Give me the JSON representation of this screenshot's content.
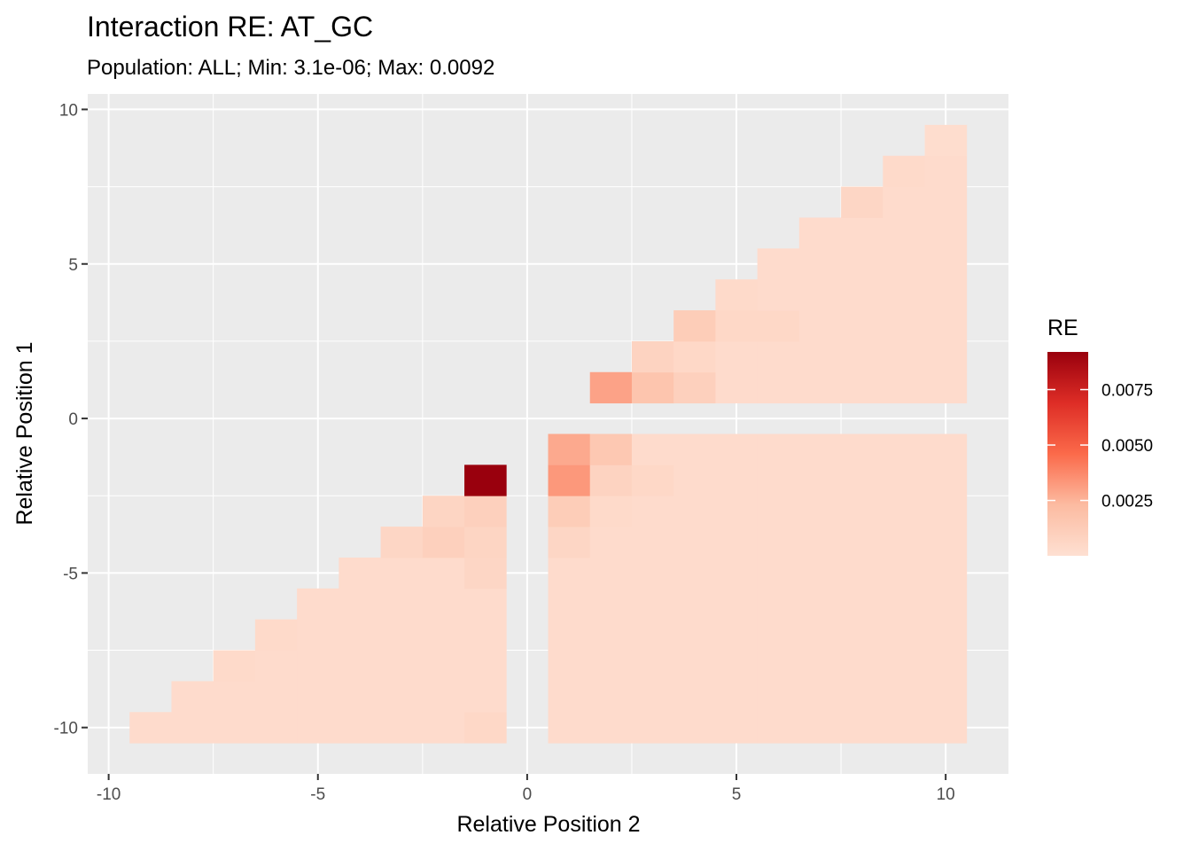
{
  "chart_data": {
    "type": "heatmap",
    "title": "Interaction RE: AT_GC",
    "subtitle": "Population: ALL; Min: 3.1e-06; Max: 0.0092",
    "xlabel": "Relative Position 2",
    "ylabel": "Relative Position 1",
    "xlim": [
      -10.5,
      11.5
    ],
    "ylim": [
      -11.5,
      10.5
    ],
    "x_ticks": [
      -10,
      -5,
      0,
      5,
      10
    ],
    "y_ticks": [
      -10,
      -5,
      0,
      5,
      10
    ],
    "x_tick_labels": [
      "-10",
      "-5",
      "0",
      "5",
      "10"
    ],
    "y_tick_labels": [
      "-10",
      "-5",
      "0",
      "5",
      "10"
    ],
    "grid": true,
    "legend": {
      "title": "RE",
      "position": "right",
      "min": 3.1e-06,
      "max": 0.0092,
      "breaks": [
        0.0025,
        0.005,
        0.0075
      ],
      "break_labels": [
        "0.0025",
        "0.0050",
        "0.0075"
      ],
      "low_color": "#fee0d2",
      "high_color": "#99000d"
    },
    "default_value": 0.0003,
    "special_cells": [
      {
        "x": -1,
        "y": -2,
        "value": 0.0092
      },
      {
        "x": 1,
        "y": -1,
        "value": 0.0028
      },
      {
        "x": 1,
        "y": -2,
        "value": 0.0033
      },
      {
        "x": 1,
        "y": -3,
        "value": 0.0012
      },
      {
        "x": 1,
        "y": -4,
        "value": 0.0006
      },
      {
        "x": 2,
        "y": -1,
        "value": 0.0015
      },
      {
        "x": 2,
        "y": -2,
        "value": 0.0008
      },
      {
        "x": 2,
        "y": -3,
        "value": 0.0004
      },
      {
        "x": 3,
        "y": -2,
        "value": 0.0005
      },
      {
        "x": 2,
        "y": 1,
        "value": 0.003
      },
      {
        "x": 3,
        "y": 1,
        "value": 0.0017
      },
      {
        "x": 4,
        "y": 1,
        "value": 0.001
      },
      {
        "x": 3,
        "y": 2,
        "value": 0.0008
      },
      {
        "x": 4,
        "y": 2,
        "value": 0.0005
      },
      {
        "x": 4,
        "y": 3,
        "value": 0.0012
      },
      {
        "x": 5,
        "y": 3,
        "value": 0.0005
      },
      {
        "x": 6,
        "y": 3,
        "value": 0.0005
      },
      {
        "x": 5,
        "y": 4,
        "value": 0.0004
      },
      {
        "x": 8,
        "y": 7,
        "value": 0.0006
      },
      {
        "x": 9,
        "y": 8,
        "value": 0.0004
      },
      {
        "x": 10,
        "y": 9,
        "value": 0.0002
      },
      {
        "x": -2,
        "y": -3,
        "value": 0.0007
      },
      {
        "x": -1,
        "y": -3,
        "value": 0.001
      },
      {
        "x": -2,
        "y": -4,
        "value": 0.001
      },
      {
        "x": -3,
        "y": -4,
        "value": 0.0006
      },
      {
        "x": -1,
        "y": -4,
        "value": 0.0007
      },
      {
        "x": -1,
        "y": -5,
        "value": 0.0006
      },
      {
        "x": -6,
        "y": -7,
        "value": 0.0004
      },
      {
        "x": -7,
        "y": -8,
        "value": 0.0004
      },
      {
        "x": -1,
        "y": -10,
        "value": 0.0005
      }
    ]
  }
}
